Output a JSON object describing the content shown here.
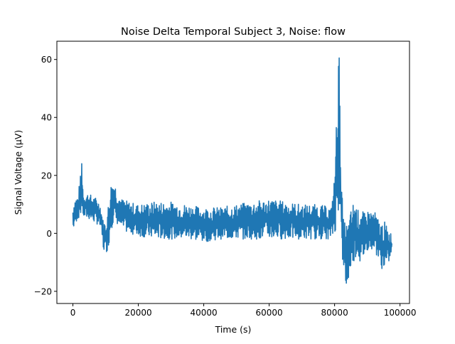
{
  "chart_data": {
    "type": "line",
    "title": "Noise Delta Temporal Subject 3, Noise: flow",
    "xlabel": "Time (s)",
    "ylabel": "Signal Voltage (μV)",
    "xlim": [
      -4900,
      102900
    ],
    "ylim": [
      -24.2,
      66.3
    ],
    "xticks": [
      0,
      20000,
      40000,
      60000,
      80000,
      100000
    ],
    "xtick_labels": [
      "0",
      "20000",
      "40000",
      "60000",
      "80000",
      "100000"
    ],
    "yticks": [
      -20,
      0,
      20,
      40,
      60
    ],
    "ytick_labels": [
      "−20",
      "0",
      "20",
      "40",
      "60"
    ],
    "grid": false,
    "series": [
      {
        "color": "#1f77b4",
        "envelope": [
          {
            "x": 0,
            "min": 1,
            "max": 9
          },
          {
            "x": 500,
            "min": 3,
            "max": 12
          },
          {
            "x": 1500,
            "min": 5,
            "max": 13
          },
          {
            "x": 2300,
            "min": 6,
            "max": 20
          },
          {
            "x": 2700,
            "min": 7,
            "max": 27
          },
          {
            "x": 3200,
            "min": 5,
            "max": 14
          },
          {
            "x": 4500,
            "min": 5,
            "max": 14
          },
          {
            "x": 6000,
            "min": 4,
            "max": 13
          },
          {
            "x": 7500,
            "min": 3,
            "max": 12
          },
          {
            "x": 8500,
            "min": 1,
            "max": 10
          },
          {
            "x": 9200,
            "min": -6,
            "max": 5
          },
          {
            "x": 10000,
            "min": -7,
            "max": 4
          },
          {
            "x": 10800,
            "min": -5,
            "max": 10
          },
          {
            "x": 11500,
            "min": 1,
            "max": 17
          },
          {
            "x": 12500,
            "min": 4,
            "max": 19
          },
          {
            "x": 13500,
            "min": 3,
            "max": 15
          },
          {
            "x": 15000,
            "min": 1,
            "max": 12
          },
          {
            "x": 17000,
            "min": 0,
            "max": 11
          },
          {
            "x": 20000,
            "min": -1,
            "max": 10
          },
          {
            "x": 25000,
            "min": -2,
            "max": 11
          },
          {
            "x": 30000,
            "min": -2,
            "max": 11
          },
          {
            "x": 35000,
            "min": -2,
            "max": 10
          },
          {
            "x": 40000,
            "min": -3,
            "max": 9
          },
          {
            "x": 45000,
            "min": -2,
            "max": 9
          },
          {
            "x": 50000,
            "min": -2,
            "max": 10
          },
          {
            "x": 55000,
            "min": -2,
            "max": 11
          },
          {
            "x": 60000,
            "min": -2,
            "max": 12
          },
          {
            "x": 65000,
            "min": -2,
            "max": 11
          },
          {
            "x": 70000,
            "min": -2,
            "max": 10
          },
          {
            "x": 75000,
            "min": -2,
            "max": 10
          },
          {
            "x": 79000,
            "min": -2,
            "max": 9
          },
          {
            "x": 80000,
            "min": 0,
            "max": 20
          },
          {
            "x": 80700,
            "min": 4,
            "max": 44
          },
          {
            "x": 81200,
            "min": 8,
            "max": 62
          },
          {
            "x": 81600,
            "min": 5,
            "max": 62
          },
          {
            "x": 82000,
            "min": -5,
            "max": 20
          },
          {
            "x": 82700,
            "min": -15,
            "max": 5
          },
          {
            "x": 83500,
            "min": -20,
            "max": 4
          },
          {
            "x": 84000,
            "min": -17,
            "max": 3
          },
          {
            "x": 85000,
            "min": -12,
            "max": 8
          },
          {
            "x": 86000,
            "min": -9,
            "max": 12
          },
          {
            "x": 87000,
            "min": -8,
            "max": 8
          },
          {
            "x": 88000,
            "min": -11,
            "max": 9
          },
          {
            "x": 89000,
            "min": -8,
            "max": 7
          },
          {
            "x": 90000,
            "min": -6,
            "max": 8
          },
          {
            "x": 92000,
            "min": -5,
            "max": 8
          },
          {
            "x": 94000,
            "min": -12,
            "max": 4
          },
          {
            "x": 95500,
            "min": -13,
            "max": 4
          },
          {
            "x": 96500,
            "min": -10,
            "max": 1
          },
          {
            "x": 97500,
            "min": -7,
            "max": 0
          }
        ]
      }
    ]
  }
}
